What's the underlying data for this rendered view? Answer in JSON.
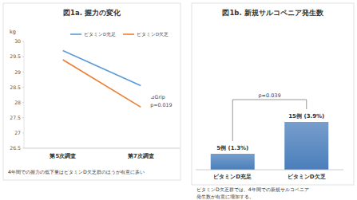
{
  "chart_data": [
    {
      "type": "line",
      "title": "図1a. 握力の変化",
      "y_label": "kg",
      "categories": [
        "第5次調査",
        "第7次調査"
      ],
      "series": [
        {
          "name": "ビタミンD充足",
          "color": "#5b9bd5",
          "values": [
            29.7,
            28.55
          ]
        },
        {
          "name": "ビタミンD欠乏",
          "color": "#ed7d31",
          "values": [
            29.4,
            27.85
          ]
        }
      ],
      "ylim": [
        26.5,
        30
      ],
      "yticks": [
        26.5,
        27,
        27.5,
        28,
        28.5,
        29,
        29.5,
        30
      ],
      "grid": false,
      "legend": "top",
      "annotations": [
        "⊿Grip",
        "p=0.019"
      ],
      "caption": [
        "4年間での握力の低下量はビタミンD欠乏群のほうが有意に多い"
      ]
    },
    {
      "type": "bar",
      "title": "図1b. 新規サルコペニア発生数",
      "categories": [
        "ビタミンD充足",
        "ビタミンD欠乏"
      ],
      "values": [
        5,
        15
      ],
      "value_labels": [
        "5例 (1.3%)",
        "15例 (3.9%)"
      ],
      "data_labels": true,
      "color": "#4a7ebb",
      "ylim": [
        0,
        25
      ],
      "tick_labels": "x",
      "grid": false,
      "annotations": [
        "p=0.039"
      ],
      "caption": [
        "ビタミンD欠乏群では、4年間での新規サルコペニア",
        "発生数が有意に増加する。"
      ]
    }
  ]
}
